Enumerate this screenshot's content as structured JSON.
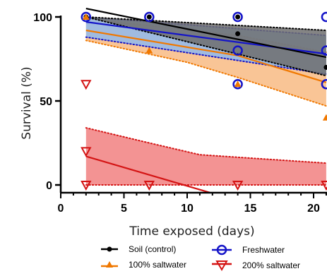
{
  "chart_data": {
    "type": "scatter",
    "xlabel": "Time exposed (days)",
    "ylabel": "Survival (%)",
    "xlim": [
      0,
      21
    ],
    "ylim": [
      0,
      100
    ],
    "xticks": [
      0,
      5,
      10,
      15,
      20
    ],
    "yticks": [
      0,
      50,
      100
    ],
    "grid": false,
    "legend_position": "bottom",
    "series": [
      {
        "name": "Soil (control)",
        "color": "#000000",
        "band_color": "#6e6e6e",
        "marker": "circle-filled",
        "points": [
          [
            2,
            100
          ],
          [
            7,
            100
          ],
          [
            14,
            100
          ],
          [
            14,
            90
          ],
          [
            21,
            70
          ]
        ],
        "fit": [
          [
            2,
            105
          ],
          [
            21,
            76
          ]
        ],
        "band_upper": [
          [
            2,
            100
          ],
          [
            21,
            92
          ]
        ],
        "band_lower": [
          [
            2,
            100
          ],
          [
            21,
            65
          ]
        ]
      },
      {
        "name": "Freshwater",
        "color": "#1414c8",
        "band_color": "#8ab8f2",
        "marker": "circle-open",
        "points": [
          [
            2,
            100
          ],
          [
            7,
            100
          ],
          [
            14,
            100
          ],
          [
            14,
            80
          ],
          [
            14,
            60
          ],
          [
            21,
            100
          ],
          [
            21,
            80
          ],
          [
            21,
            60
          ]
        ],
        "fit": [
          [
            2,
            97
          ],
          [
            21,
            78
          ]
        ],
        "band_upper": [
          [
            2,
            100
          ],
          [
            21,
            89
          ]
        ],
        "band_lower": [
          [
            2,
            88
          ],
          [
            21,
            66
          ]
        ]
      },
      {
        "name": "100% saltwater",
        "color": "#f07800",
        "band_color": "#f8b77c",
        "marker": "triangle-up-filled",
        "points": [
          [
            2,
            100
          ],
          [
            7,
            80
          ],
          [
            14,
            60
          ],
          [
            21,
            40
          ]
        ],
        "fit": [
          [
            2,
            92
          ],
          [
            14,
            77
          ],
          [
            21,
            61
          ]
        ],
        "band_upper": [
          [
            2,
            99
          ],
          [
            14,
            89
          ],
          [
            21,
            79
          ]
        ],
        "band_lower": [
          [
            2,
            86
          ],
          [
            10,
            73
          ],
          [
            14,
            64
          ],
          [
            21,
            47
          ]
        ]
      },
      {
        "name": "200% saltwater",
        "color": "#d41414",
        "band_color": "#f07878",
        "marker": "triangle-down-open",
        "points": [
          [
            2,
            60
          ],
          [
            2,
            20
          ],
          [
            2,
            0
          ],
          [
            7,
            0
          ],
          [
            14,
            0
          ],
          [
            21,
            0
          ]
        ],
        "fit": [
          [
            2,
            17
          ],
          [
            12,
            -5
          ]
        ],
        "band_upper": [
          [
            2,
            34
          ],
          [
            7,
            25
          ],
          [
            11,
            18
          ],
          [
            21,
            13
          ]
        ],
        "band_lower": [
          [
            2,
            0
          ],
          [
            21,
            0
          ]
        ]
      }
    ]
  }
}
